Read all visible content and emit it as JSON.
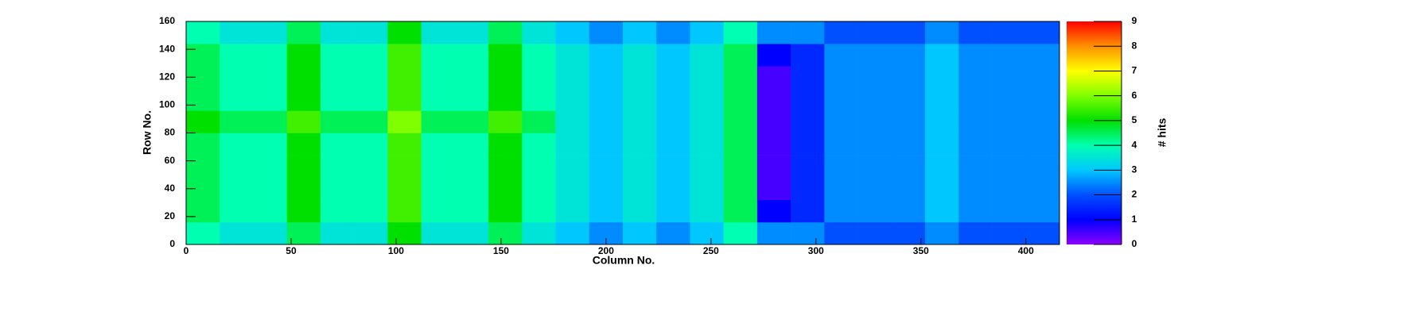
{
  "chart_data": {
    "type": "heatmap",
    "xlabel": "Column No.",
    "ylabel": "Row No.",
    "zlabel": "# hits",
    "xbins": [
      0,
      16,
      32,
      48,
      64,
      80,
      96,
      112,
      128,
      144,
      160,
      176,
      192,
      208,
      224,
      240,
      256,
      272,
      288,
      304,
      320,
      336,
      352,
      368,
      384,
      400,
      416
    ],
    "ybins": [
      0,
      16,
      32,
      48,
      64,
      80,
      96,
      112,
      128,
      144,
      160
    ],
    "z": [
      [
        4,
        3.5,
        3.5,
        4.5,
        3.5,
        3.5,
        5,
        3.5,
        3.5,
        4.5,
        3.5,
        3,
        2.5,
        3,
        2.5,
        3,
        4,
        2.5,
        2.5,
        2,
        2,
        2,
        2.5,
        2,
        2,
        2
      ],
      [
        4.5,
        4,
        4,
        5,
        4,
        4,
        5.5,
        4,
        4,
        5,
        4,
        3.5,
        3,
        3.5,
        3,
        3.5,
        4.5,
        1,
        1.5,
        2.5,
        2.5,
        2.5,
        3,
        2.5,
        2.5,
        2.5
      ],
      [
        4.5,
        4,
        4,
        5,
        4,
        4,
        5.5,
        4,
        4,
        5,
        4,
        3.5,
        3,
        3.5,
        3,
        3.5,
        4.5,
        0.5,
        1.5,
        2.5,
        2.5,
        2.5,
        3,
        2.5,
        2.5,
        2.5
      ],
      [
        4.5,
        4,
        4,
        5,
        4,
        4,
        5.5,
        4,
        4,
        5,
        4,
        3.5,
        3,
        3.5,
        3,
        3.5,
        4.5,
        0.5,
        1.5,
        2.5,
        2.5,
        2.5,
        3,
        2.5,
        2.5,
        2.5
      ],
      [
        4.5,
        4,
        4,
        5,
        4,
        4,
        5.5,
        4,
        4,
        5,
        4,
        3.5,
        3,
        3.5,
        3,
        3.5,
        4.5,
        0.5,
        1.5,
        2.5,
        2.5,
        2.5,
        3,
        2.5,
        2.5,
        2.5
      ],
      [
        5,
        4.5,
        4.5,
        5.5,
        4.5,
        4.5,
        6,
        4.5,
        4.5,
        5.5,
        4.5,
        3.5,
        3,
        3.5,
        3,
        3.5,
        4.5,
        0.5,
        1.5,
        2.5,
        2.5,
        2.5,
        3,
        2.5,
        2.5,
        2.5
      ],
      [
        4.5,
        4,
        4,
        5,
        4,
        4,
        5.5,
        4,
        4,
        5,
        4,
        3.5,
        3,
        3.5,
        3,
        3.5,
        4.5,
        0.5,
        1.5,
        2.5,
        2.5,
        2.5,
        3,
        2.5,
        2.5,
        2.5
      ],
      [
        4.5,
        4,
        4,
        5,
        4,
        4,
        5.5,
        4,
        4,
        5,
        4,
        3.5,
        3,
        3.5,
        3,
        3.5,
        4.5,
        0.5,
        1.5,
        2.5,
        2.5,
        2.5,
        3,
        2.5,
        2.5,
        2.5
      ],
      [
        4.5,
        4,
        4,
        5,
        4,
        4,
        5.5,
        4,
        4,
        5,
        4,
        3.5,
        3,
        3.5,
        3,
        3.5,
        4.5,
        1,
        1.5,
        2.5,
        2.5,
        2.5,
        3,
        2.5,
        2.5,
        2.5
      ],
      [
        4,
        3.5,
        3.5,
        4.5,
        3.5,
        3.5,
        5,
        3.5,
        3.5,
        4.5,
        3.5,
        3,
        2.5,
        3,
        2.5,
        3,
        4,
        2.5,
        2.5,
        2,
        2,
        2,
        2.5,
        2,
        2,
        2
      ]
    ],
    "xlim": [
      0,
      416
    ],
    "ylim": [
      0,
      160
    ],
    "zlim": [
      0,
      9
    ],
    "xticks": [
      0,
      50,
      100,
      150,
      200,
      250,
      300,
      350,
      400
    ],
    "yticks": [
      0,
      20,
      40,
      60,
      80,
      100,
      120,
      140,
      160
    ],
    "zticks": [
      0,
      1,
      2,
      3,
      4,
      5,
      6,
      7,
      8,
      9
    ],
    "colorscale": [
      "#8b00ff",
      "#0000ff",
      "#0050ff",
      "#00c8ff",
      "#00ffb0",
      "#00e000",
      "#80ff00",
      "#ffff00",
      "#ff9000",
      "#ff0000"
    ]
  }
}
